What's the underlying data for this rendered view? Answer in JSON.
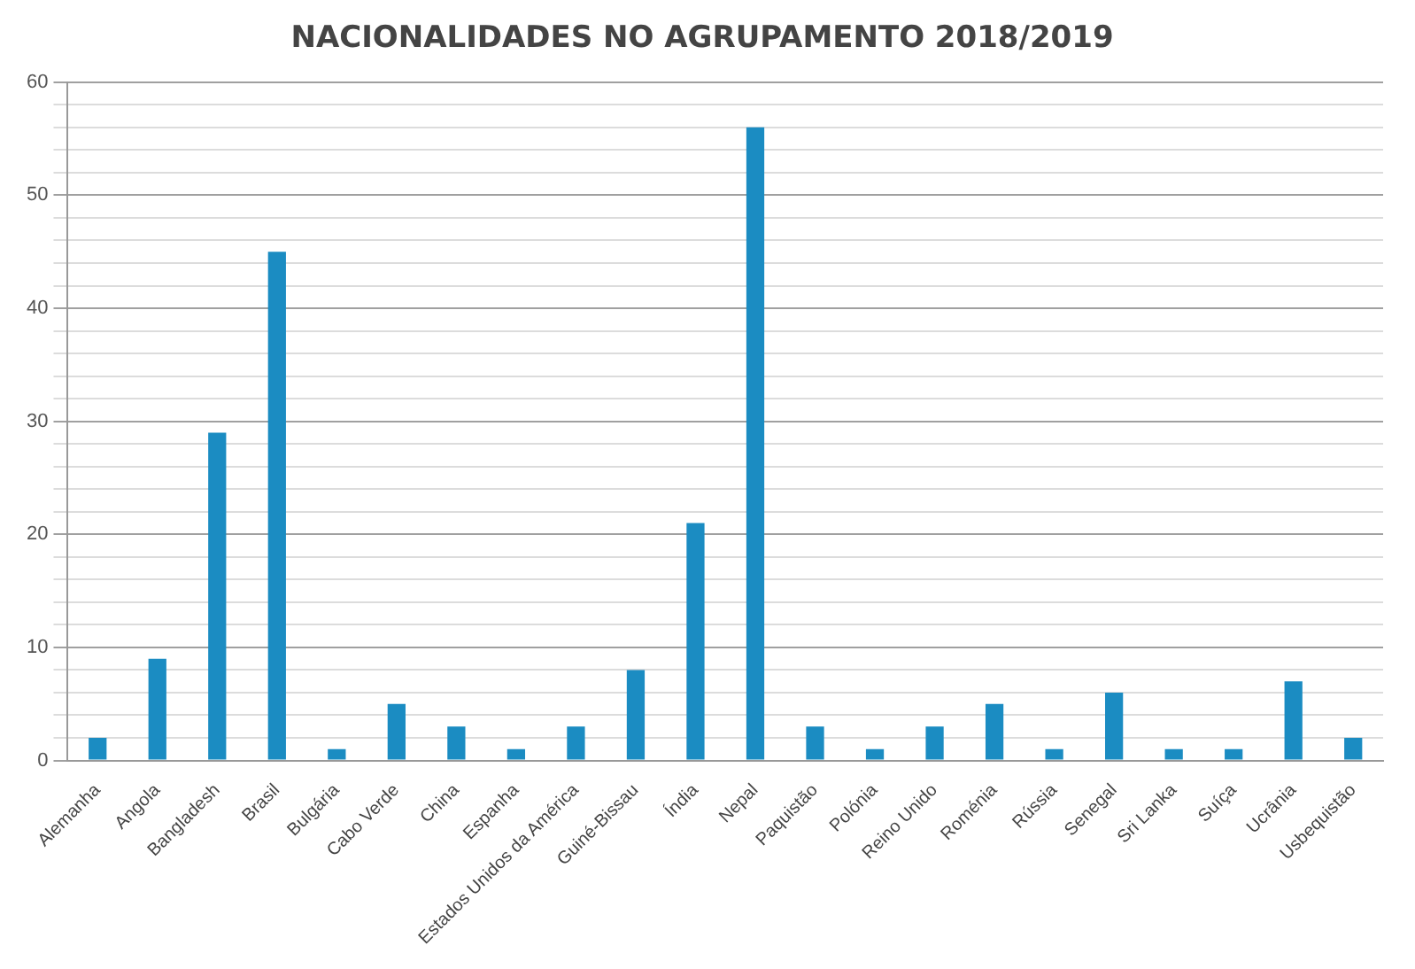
{
  "chart_data": {
    "type": "bar",
    "title": "NACIONALIDADES NO AGRUPAMENTO 2018/2019",
    "categories": [
      "Alemanha",
      "Angola",
      "Bangladesh",
      "Brasil",
      "Bulgária",
      "Cabo Verde",
      "China",
      "Espanha",
      "Estados Unidos da América",
      "Guiné-Bissau",
      "Índia",
      "Nepal",
      "Paquistão",
      "Polónia",
      "Reino Unido",
      "Roménia",
      "Rússia",
      "Senegal",
      "Sri Lanka",
      "Suíça",
      "Ucrânia",
      "Usbequistão"
    ],
    "values": [
      2,
      9,
      29,
      45,
      1,
      5,
      3,
      1,
      3,
      8,
      21,
      56,
      3,
      1,
      3,
      5,
      1,
      6,
      1,
      1,
      7,
      2
    ],
    "color": "#1b8cc2",
    "ylim": [
      0,
      60
    ],
    "yticks": [
      0,
      {
        "value": 2,
        "label": null
      },
      {
        "value": 4,
        "label": null
      },
      {
        "value": 6,
        "label": null
      },
      {
        "value": 8,
        "label": null
      },
      10,
      {
        "value": 12,
        "label": null
      },
      {
        "value": 14,
        "label": null
      },
      {
        "value": 16,
        "label": null
      },
      {
        "value": 18,
        "label": null
      },
      20,
      {
        "value": 22,
        "label": null
      },
      {
        "value": 24,
        "label": null
      },
      {
        "value": 26,
        "label": null
      },
      {
        "value": 28,
        "label": null
      },
      30,
      {
        "value": 32,
        "label": null
      },
      {
        "value": 34,
        "label": null
      },
      {
        "value": 36,
        "label": null
      },
      {
        "value": 38,
        "label": null
      },
      40,
      {
        "value": 42,
        "label": null
      },
      {
        "value": 44,
        "label": null
      },
      {
        "value": 46,
        "label": null
      },
      {
        "value": 48,
        "label": null
      },
      50,
      {
        "value": 52,
        "label": null
      },
      {
        "value": 54,
        "label": null
      },
      {
        "value": 56,
        "label": null
      },
      {
        "value": 58,
        "label": null
      },
      60
    ],
    "grid": "y"
  }
}
